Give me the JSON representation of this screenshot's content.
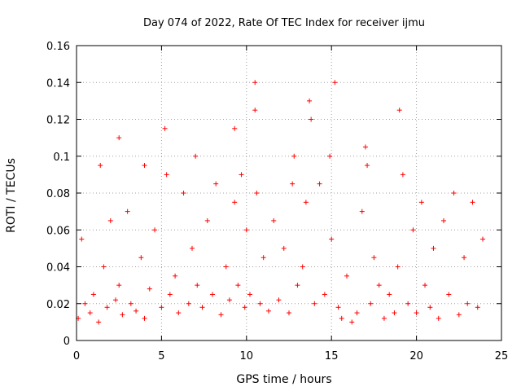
{
  "chart_data": {
    "type": "scatter",
    "title": "Day 074 of 2022, Rate Of TEC Index for receiver ijmu",
    "xlabel": "GPS time / hours",
    "ylabel": "ROTI / TECUs",
    "xlim": [
      0,
      25
    ],
    "ylim": [
      0,
      0.16
    ],
    "xticks": [
      0,
      5,
      10,
      15,
      20,
      25
    ],
    "xtick_labels": [
      "0",
      "5",
      "10",
      "15",
      "20",
      "25"
    ],
    "yticks": [
      0,
      0.02,
      0.04,
      0.06,
      0.08,
      0.1,
      0.12,
      0.14,
      0.16
    ],
    "ytick_labels": [
      "0",
      "0.02",
      "0.04",
      "0.06",
      "0.08",
      "0.1",
      "0.12",
      "0.14",
      "0.16"
    ],
    "grid": true,
    "marker": "+",
    "series_color": "#ff0000",
    "series": [
      {
        "name": "ROTI",
        "x": [
          0.1,
          0.3,
          0.5,
          0.8,
          1.0,
          1.3,
          1.4,
          1.6,
          1.8,
          2.0,
          2.3,
          2.5,
          2.5,
          2.7,
          3.0,
          3.2,
          3.5,
          3.8,
          4.0,
          4.0,
          4.3,
          4.6,
          5.0,
          5.2,
          5.3,
          5.5,
          5.8,
          6.0,
          6.3,
          6.6,
          6.8,
          7.0,
          7.1,
          7.4,
          7.7,
          8.0,
          8.2,
          8.5,
          8.8,
          9.0,
          9.3,
          9.3,
          9.5,
          9.7,
          9.9,
          10.0,
          10.2,
          10.5,
          10.5,
          10.6,
          10.8,
          11.0,
          11.3,
          11.6,
          11.9,
          12.2,
          12.5,
          12.7,
          12.8,
          13.0,
          13.3,
          13.5,
          13.7,
          13.8,
          14.0,
          14.3,
          14.6,
          14.9,
          15.0,
          15.2,
          15.4,
          15.6,
          15.9,
          16.2,
          16.5,
          16.8,
          17.0,
          17.1,
          17.3,
          17.5,
          17.8,
          18.1,
          18.4,
          18.7,
          18.9,
          19.0,
          19.2,
          19.5,
          19.8,
          20.0,
          20.3,
          20.5,
          20.8,
          21.0,
          21.3,
          21.6,
          21.9,
          22.2,
          22.5,
          22.8,
          23.0,
          23.3,
          23.6,
          23.9
        ],
        "y": [
          0.012,
          0.055,
          0.02,
          0.015,
          0.025,
          0.01,
          0.095,
          0.04,
          0.018,
          0.065,
          0.022,
          0.11,
          0.03,
          0.014,
          0.07,
          0.02,
          0.016,
          0.045,
          0.012,
          0.095,
          0.028,
          0.06,
          0.018,
          0.115,
          0.09,
          0.025,
          0.035,
          0.015,
          0.08,
          0.02,
          0.05,
          0.1,
          0.03,
          0.018,
          0.065,
          0.025,
          0.085,
          0.014,
          0.04,
          0.022,
          0.115,
          0.075,
          0.03,
          0.09,
          0.018,
          0.06,
          0.025,
          0.14,
          0.125,
          0.08,
          0.02,
          0.045,
          0.016,
          0.065,
          0.022,
          0.05,
          0.015,
          0.085,
          0.1,
          0.03,
          0.04,
          0.075,
          0.13,
          0.12,
          0.02,
          0.085,
          0.025,
          0.1,
          0.055,
          0.14,
          0.018,
          0.012,
          0.035,
          0.01,
          0.015,
          0.07,
          0.105,
          0.095,
          0.02,
          0.045,
          0.03,
          0.012,
          0.025,
          0.015,
          0.04,
          0.125,
          0.09,
          0.02,
          0.06,
          0.015,
          0.075,
          0.03,
          0.018,
          0.05,
          0.012,
          0.065,
          0.025,
          0.08,
          0.014,
          0.045,
          0.02,
          0.075,
          0.018,
          0.055
        ]
      }
    ]
  }
}
